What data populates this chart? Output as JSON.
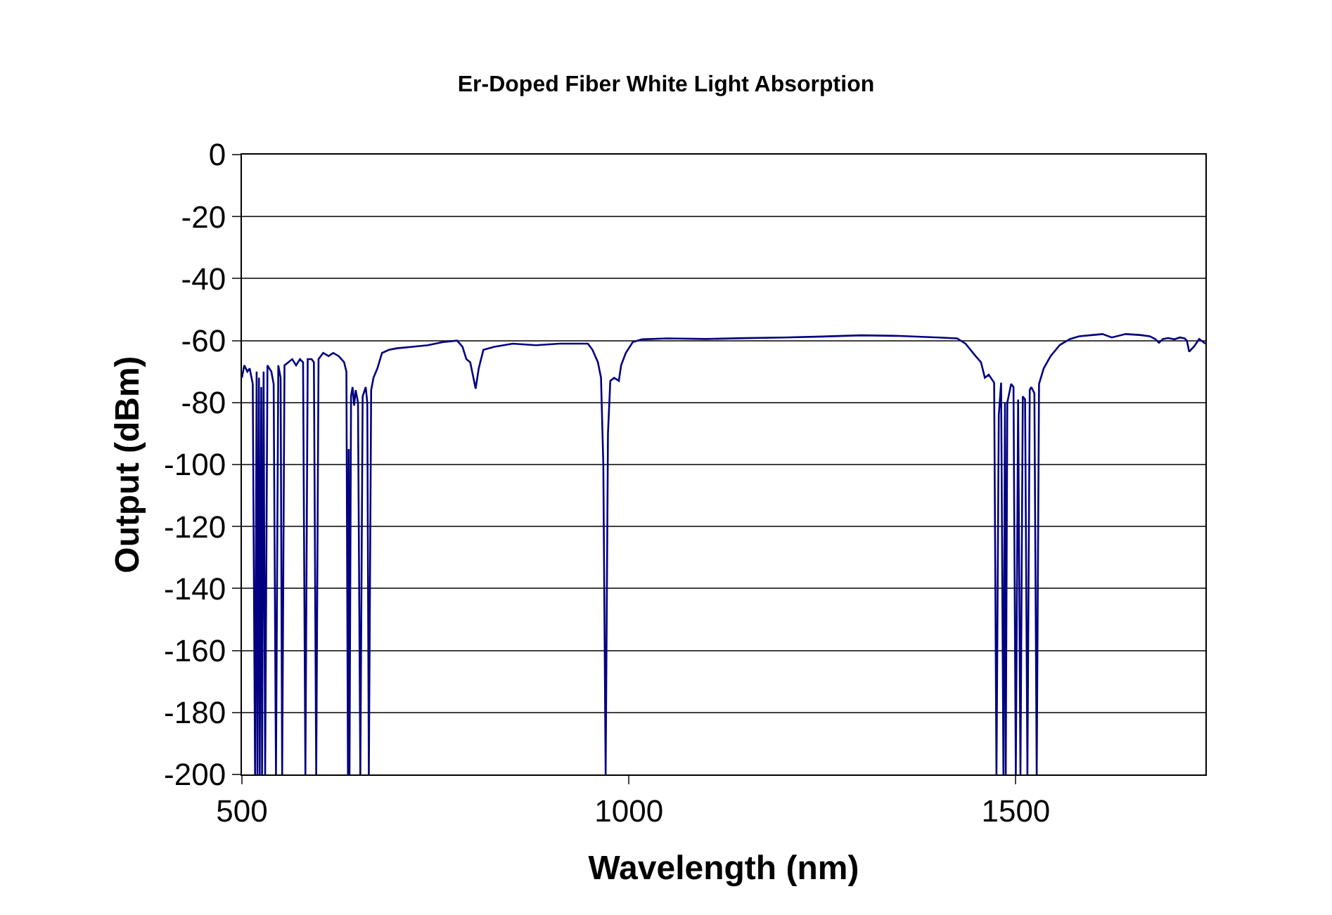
{
  "chart_data": {
    "type": "line",
    "title": "Er-Doped Fiber White Light Absorption",
    "xlabel": "Wavelength (nm)",
    "ylabel": "Output (dBm)",
    "xlim": [
      500,
      1745
    ],
    "xticks": [
      500,
      1000,
      1500
    ],
    "ylim": [
      -200,
      0
    ],
    "yticks": [
      0,
      -20,
      -40,
      -60,
      -80,
      -100,
      -120,
      -140,
      -160,
      -180,
      -200
    ],
    "grid": "y",
    "x": [
      500,
      503,
      507,
      510,
      514,
      517,
      519,
      520,
      522,
      523,
      525,
      526,
      528,
      530,
      533,
      538,
      541,
      544,
      547,
      550,
      552,
      555,
      560,
      565,
      570,
      575,
      579,
      582,
      585,
      590,
      593,
      596,
      599,
      605,
      612,
      618,
      625,
      632,
      635,
      637,
      638,
      639,
      641,
      643,
      645,
      647,
      650,
      653,
      656,
      660,
      662,
      664,
      667,
      670,
      675,
      681,
      690,
      700,
      720,
      740,
      760,
      778,
      785,
      790,
      795,
      802,
      806,
      812,
      826,
      850,
      880,
      910,
      947,
      953,
      960,
      964,
      967,
      970,
      973,
      976,
      981,
      987,
      990,
      996,
      1005,
      1017,
      1050,
      1100,
      1150,
      1200,
      1250,
      1300,
      1350,
      1400,
      1424,
      1435,
      1448,
      1455,
      1460,
      1465,
      1472,
      1475,
      1478,
      1481,
      1484,
      1486,
      1487,
      1489,
      1494,
      1497,
      1500,
      1503,
      1506,
      1509,
      1512,
      1515,
      1518,
      1520,
      1524,
      1527,
      1530,
      1536,
      1545,
      1557,
      1570,
      1582,
      1600,
      1612,
      1624,
      1642,
      1660,
      1673,
      1680,
      1685,
      1690,
      1697,
      1705,
      1712,
      1718,
      1721,
      1724,
      1730,
      1737,
      1745
    ],
    "series": [
      {
        "color": "#000080",
        "values": [
          -72,
          -68,
          -70,
          -69,
          -74,
          -200,
          -70,
          -200,
          -72,
          -200,
          -75,
          -200,
          -70,
          -200,
          -68,
          -70,
          -74,
          -200,
          -68,
          -72,
          -200,
          -68,
          -67,
          -66,
          -68,
          -66,
          -67,
          -200,
          -66,
          -66,
          -67,
          -200,
          -66,
          -64,
          -65,
          -64,
          -65,
          -67,
          -70,
          -200,
          -95,
          -200,
          -78,
          -75,
          -81,
          -76,
          -80,
          -200,
          -78,
          -75,
          -80,
          -200,
          -76,
          -72,
          -69,
          -64,
          -63,
          -62.5,
          -62,
          -61.5,
          -60.5,
          -60,
          -62,
          -66,
          -67,
          -75.5,
          -69,
          -63,
          -62,
          -61,
          -61.5,
          -61,
          -61,
          -63,
          -67,
          -72,
          -100,
          -200,
          -90,
          -73,
          -72,
          -73,
          -68,
          -64,
          -60.5,
          -59.6,
          -59.3,
          -59.5,
          -59.2,
          -59,
          -58.7,
          -58.3,
          -58.5,
          -59,
          -59.3,
          -61,
          -65,
          -67,
          -72,
          -71,
          -73.6,
          -200,
          -84,
          -73.6,
          -200,
          -80,
          -200,
          -80,
          -74,
          -75,
          -200,
          -79,
          -200,
          -78,
          -79,
          -200,
          -76,
          -75,
          -77,
          -200,
          -74,
          -69,
          -65,
          -61.4,
          -59.5,
          -58.6,
          -58.2,
          -57.9,
          -59,
          -57.9,
          -58.2,
          -58.6,
          -59.5,
          -60.7,
          -59.5,
          -59.2,
          -59.6,
          -59,
          -59.3,
          -60,
          -63.6,
          -62,
          -59.5,
          -61
        ]
      }
    ]
  }
}
